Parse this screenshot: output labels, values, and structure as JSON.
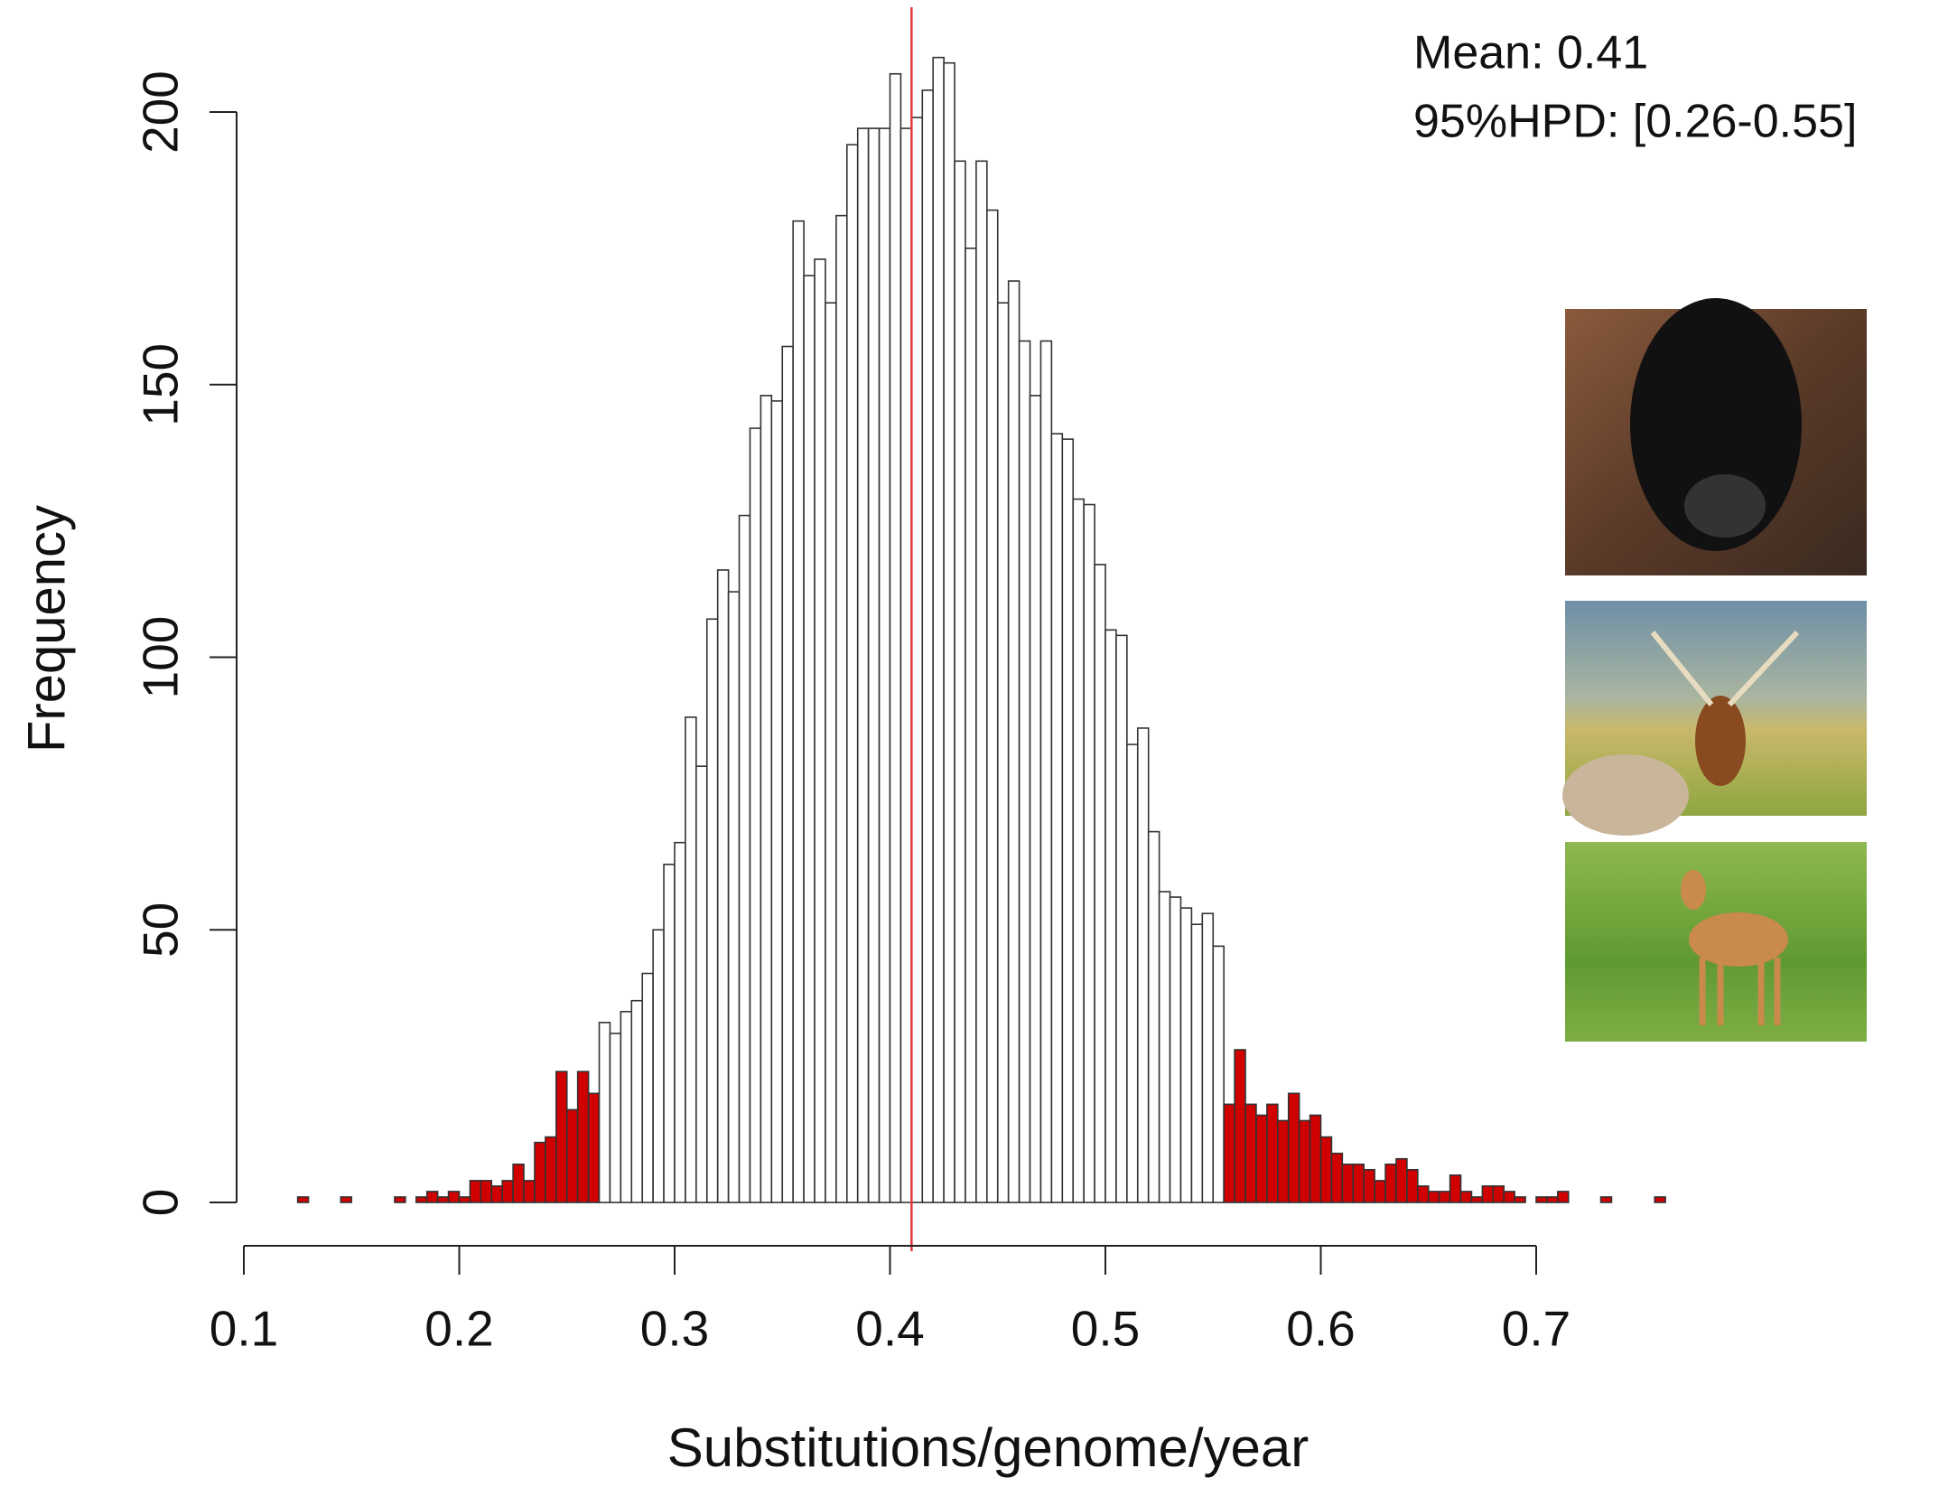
{
  "chart_data": {
    "type": "histogram",
    "x_label": "Substitutions/genome/year",
    "y_label": "Frequency",
    "annotations": [
      "Mean: 0.41",
      "95%HPD: [0.26-0.55]"
    ],
    "mean_line": 0.41,
    "mean_line_color": "#e8343a",
    "xlim": [
      0.1,
      0.7
    ],
    "xticks": [
      0.1,
      0.2,
      0.3,
      0.4,
      0.5,
      0.6,
      0.7
    ],
    "ylim": [
      0,
      200
    ],
    "yticks": [
      0,
      50,
      100,
      150,
      200
    ],
    "bins": [
      0.125,
      0.13,
      0.135,
      0.14,
      0.145,
      0.15,
      0.155,
      0.16,
      0.165,
      0.17,
      0.175,
      0.18,
      0.185,
      0.19,
      0.195,
      0.2,
      0.205,
      0.21,
      0.215,
      0.22,
      0.225,
      0.23,
      0.235,
      0.24,
      0.245,
      0.25,
      0.255,
      0.26,
      0.265,
      0.27,
      0.275,
      0.28,
      0.285,
      0.29,
      0.295,
      0.3,
      0.305,
      0.31,
      0.315,
      0.32,
      0.325,
      0.33,
      0.335,
      0.34,
      0.345,
      0.35,
      0.355,
      0.36,
      0.365,
      0.37,
      0.375,
      0.38,
      0.385,
      0.39,
      0.395,
      0.4,
      0.405,
      0.41,
      0.415,
      0.42,
      0.425,
      0.43,
      0.435,
      0.44,
      0.445,
      0.45,
      0.455,
      0.46,
      0.465,
      0.47,
      0.475,
      0.48,
      0.485,
      0.49,
      0.495,
      0.5,
      0.505,
      0.51,
      0.515,
      0.52,
      0.525,
      0.53,
      0.535,
      0.54,
      0.545,
      0.55,
      0.555,
      0.56,
      0.565,
      0.57,
      0.575,
      0.58,
      0.585,
      0.59,
      0.595,
      0.6,
      0.605,
      0.61,
      0.615,
      0.62,
      0.625,
      0.63,
      0.635,
      0.64,
      0.645,
      0.65,
      0.655,
      0.66,
      0.665,
      0.67,
      0.675,
      0.68,
      0.685,
      0.69,
      0.695,
      0.7,
      0.705,
      0.71,
      0.715,
      0.72,
      0.725,
      0.73,
      0.735,
      0.74,
      0.745,
      0.75,
      0.755,
      0.76
    ],
    "values": [
      1,
      0,
      0,
      0,
      1,
      0,
      0,
      0,
      0,
      1,
      0,
      1,
      2,
      1,
      2,
      1,
      4,
      4,
      3,
      4,
      7,
      4,
      11,
      12,
      24,
      17,
      24,
      20,
      33,
      31,
      35,
      37,
      42,
      50,
      62,
      66,
      89,
      80,
      107,
      116,
      112,
      126,
      142,
      148,
      147,
      157,
      180,
      170,
      173,
      165,
      181,
      194,
      197,
      197,
      197,
      207,
      197,
      199,
      204,
      210,
      209,
      191,
      175,
      191,
      182,
      165,
      169,
      158,
      148,
      158,
      141,
      140,
      129,
      128,
      117,
      105,
      104,
      84,
      87,
      68,
      57,
      56,
      54,
      51,
      53,
      47,
      18,
      28,
      18,
      16,
      18,
      15,
      20,
      15,
      16,
      12,
      9,
      7,
      7,
      6,
      4,
      7,
      8,
      6,
      3,
      2,
      2,
      5,
      2,
      1,
      3,
      3,
      2,
      1,
      0,
      1,
      1,
      2,
      0,
      0,
      0,
      1,
      0,
      0,
      0,
      0,
      1
    ],
    "colors": [
      "#d00000",
      "#d00000",
      "#d00000",
      "#d00000",
      "#d00000",
      "#d00000",
      "#d00000",
      "#d00000",
      "#d00000",
      "#d00000",
      "#d00000",
      "#d00000",
      "#d00000",
      "#d00000",
      "#d00000",
      "#d00000",
      "#d00000",
      "#d00000",
      "#d00000",
      "#d00000",
      "#d00000",
      "#d00000",
      "#d00000",
      "#d00000",
      "#d00000",
      "#d00000",
      "#d00000",
      "#d00000",
      "#ffffff",
      "#ffffff",
      "#ffffff",
      "#ffffff",
      "#ffffff",
      "#ffffff",
      "#ffffff",
      "#ffffff",
      "#ffffff",
      "#ffffff",
      "#ffffff",
      "#ffffff",
      "#ffffff",
      "#ffffff",
      "#ffffff",
      "#ffffff",
      "#ffffff",
      "#ffffff",
      "#ffffff",
      "#ffffff",
      "#ffffff",
      "#ffffff",
      "#ffffff",
      "#ffffff",
      "#ffffff",
      "#ffffff",
      "#ffffff",
      "#ffffff",
      "#ffffff",
      "#ffffff",
      "#ffffff",
      "#ffffff",
      "#ffffff",
      "#ffffff",
      "#ffffff",
      "#ffffff",
      "#ffffff",
      "#ffffff",
      "#ffffff",
      "#ffffff",
      "#ffffff",
      "#ffffff",
      "#ffffff",
      "#ffffff",
      "#ffffff",
      "#ffffff",
      "#ffffff",
      "#ffffff",
      "#ffffff",
      "#ffffff",
      "#ffffff",
      "#ffffff",
      "#ffffff",
      "#ffffff",
      "#ffffff",
      "#ffffff",
      "#ffffff",
      "#ffffff",
      "#d00000",
      "#d00000",
      "#d00000",
      "#d00000",
      "#d00000",
      "#d00000",
      "#d00000",
      "#d00000",
      "#d00000",
      "#d00000",
      "#d00000",
      "#d00000",
      "#d00000",
      "#d00000",
      "#d00000",
      "#d00000",
      "#d00000",
      "#d00000",
      "#d00000",
      "#d00000",
      "#d00000",
      "#d00000",
      "#d00000",
      "#d00000",
      "#d00000",
      "#d00000",
      "#d00000",
      "#d00000",
      "#d00000",
      "#d00000",
      "#d00000",
      "#d00000",
      "#d00000",
      "#d00000",
      "#d00000",
      "#d00000",
      "#d00000",
      "#d00000",
      "#d00000",
      "#d00000",
      "#d00000"
    ]
  }
}
